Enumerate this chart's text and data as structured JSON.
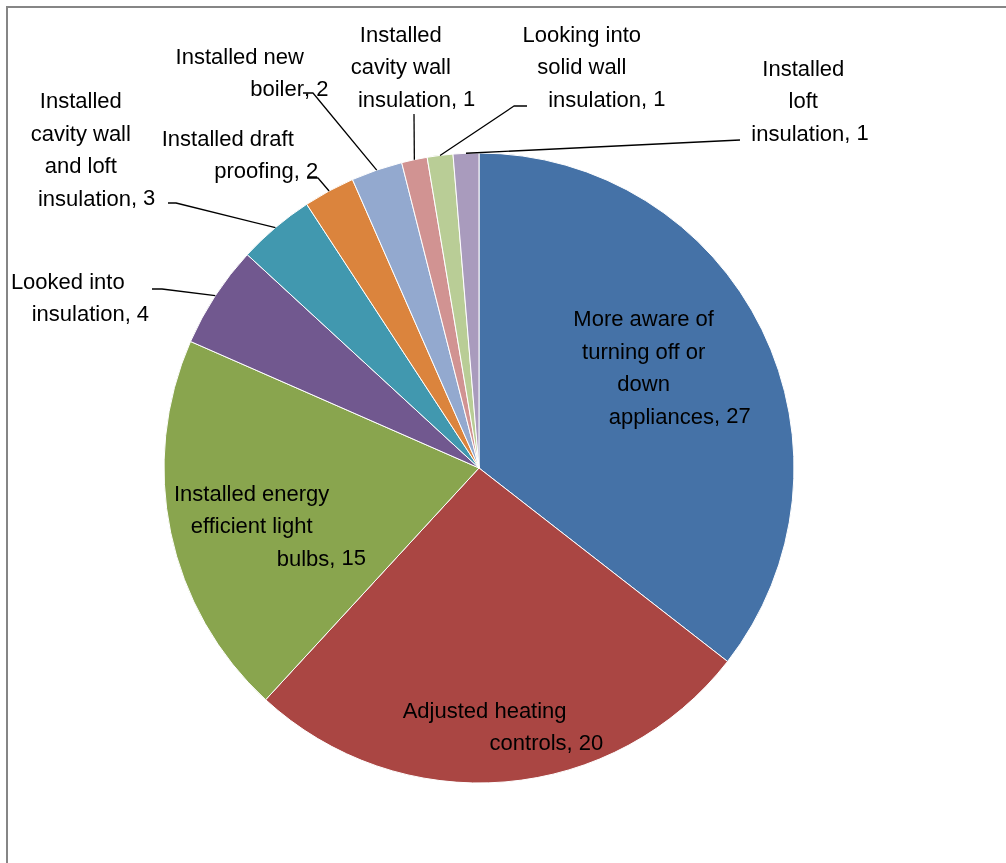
{
  "chart_data": {
    "type": "pie",
    "categories": [
      "More aware of turning off or down appliances",
      "Adjusted heating controls",
      "Installed energy efficient light bulbs",
      "Looked into insulation",
      "Installed cavity wall and loft insulation",
      "Installed draft proofing",
      "Installed new boiler",
      "Installed cavity wall insulation",
      "Looking into solid wall insulation",
      "Installed loft insulation"
    ],
    "values": [
      27,
      20,
      15,
      4,
      3,
      2,
      2,
      1,
      1,
      1
    ],
    "value_labels": [
      ", 27",
      ", 20",
      ", 15",
      ", 4",
      ", 3",
      ", 2",
      ", 2",
      ", 1",
      ", 1",
      ", 1"
    ],
    "colors": [
      "#4572a7",
      "#aa4643",
      "#89a54e",
      "#71588f",
      "#4198af",
      "#db843d",
      "#93a9cf",
      "#d19392",
      "#b9cd96",
      "#a99bbd"
    ]
  }
}
